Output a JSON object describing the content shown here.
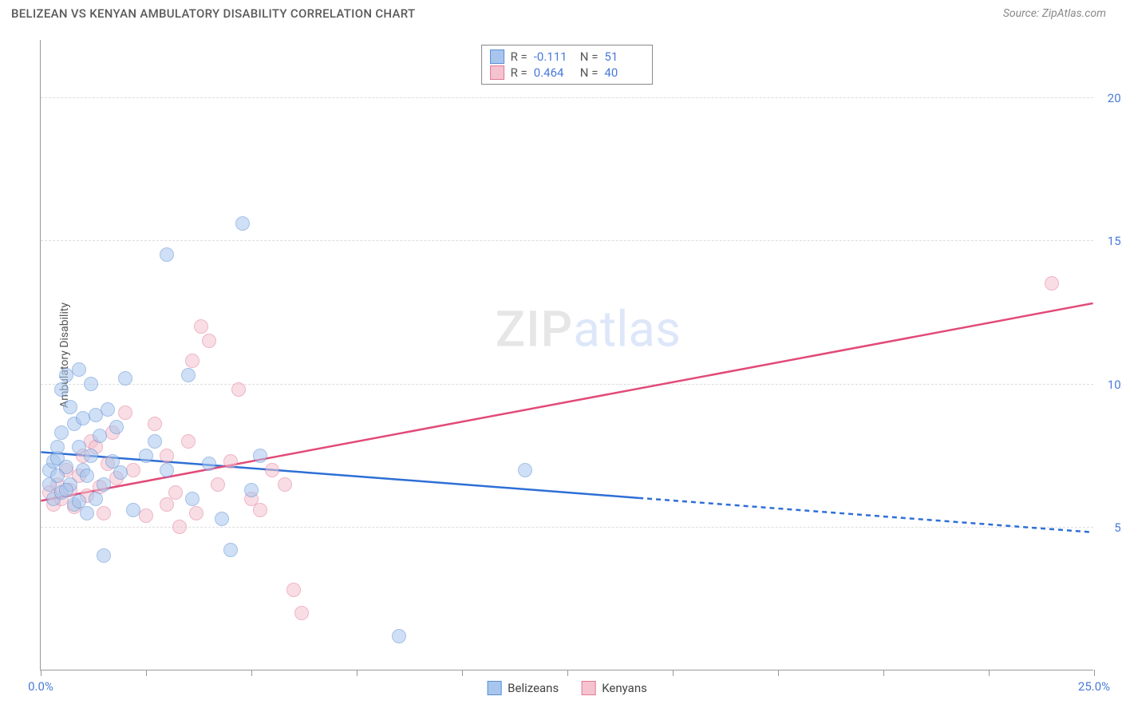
{
  "header": {
    "title": "BELIZEAN VS KENYAN AMBULATORY DISABILITY CORRELATION CHART",
    "source_prefix": "Source: ",
    "source_name": "ZipAtlas.com"
  },
  "chart": {
    "type": "scatter",
    "y_axis_title": "Ambulatory Disability",
    "background_color": "#ffffff",
    "grid_color": "#dddddd",
    "axis_color": "#999999",
    "tick_label_color": "#4a7bd8",
    "xlim": [
      0,
      25
    ],
    "ylim": [
      0,
      22
    ],
    "x_ticks": [
      0,
      2.5,
      5,
      7.5,
      10,
      12.5,
      15,
      17.5,
      20,
      22.5,
      25
    ],
    "x_tick_labels": {
      "0": "0.0%",
      "25": "25.0%"
    },
    "y_ticks": [
      5,
      10,
      15,
      20
    ],
    "y_tick_labels": {
      "5": "5.0%",
      "10": "10.0%",
      "15": "15.0%",
      "20": "20.0%"
    },
    "point_radius": 9,
    "point_opacity": 0.55,
    "watermark": {
      "zip": "ZIP",
      "atlas": "atlas"
    }
  },
  "series": {
    "belizeans": {
      "label": "Belizeans",
      "fill_color": "#a8c6ed",
      "stroke_color": "#5b8fd6",
      "line_color": "#2e6fd6",
      "R": "-0.111",
      "N": "51",
      "trend": {
        "x1": 0,
        "y1": 7.6,
        "x2_solid": 14.2,
        "y2_solid": 6.0,
        "x2": 25,
        "y2": 4.8
      },
      "points": [
        [
          0.2,
          6.5
        ],
        [
          0.2,
          7.0
        ],
        [
          0.3,
          6.0
        ],
        [
          0.3,
          7.3
        ],
        [
          0.4,
          6.8
        ],
        [
          0.4,
          7.4
        ],
        [
          0.5,
          9.8
        ],
        [
          0.5,
          8.3
        ],
        [
          0.5,
          6.2
        ],
        [
          0.6,
          10.3
        ],
        [
          0.6,
          7.1
        ],
        [
          0.7,
          9.2
        ],
        [
          0.7,
          6.5
        ],
        [
          0.8,
          8.6
        ],
        [
          0.8,
          5.8
        ],
        [
          0.9,
          7.8
        ],
        [
          0.9,
          10.5
        ],
        [
          1.0,
          8.8
        ],
        [
          1.0,
          7.0
        ],
        [
          1.1,
          5.5
        ],
        [
          1.1,
          6.8
        ],
        [
          1.2,
          10.0
        ],
        [
          1.2,
          7.5
        ],
        [
          1.3,
          6.0
        ],
        [
          1.4,
          8.2
        ],
        [
          1.5,
          4.0
        ],
        [
          1.5,
          6.5
        ],
        [
          1.6,
          9.1
        ],
        [
          1.7,
          7.3
        ],
        [
          1.8,
          8.5
        ],
        [
          1.9,
          6.9
        ],
        [
          2.0,
          10.2
        ],
        [
          2.2,
          5.6
        ],
        [
          2.5,
          7.5
        ],
        [
          2.7,
          8.0
        ],
        [
          3.0,
          14.5
        ],
        [
          3.0,
          7.0
        ],
        [
          3.5,
          10.3
        ],
        [
          3.6,
          6.0
        ],
        [
          4.0,
          7.2
        ],
        [
          4.3,
          5.3
        ],
        [
          4.5,
          4.2
        ],
        [
          4.8,
          15.6
        ],
        [
          5.0,
          6.3
        ],
        [
          5.2,
          7.5
        ],
        [
          8.5,
          1.2
        ],
        [
          11.5,
          7.0
        ],
        [
          0.4,
          7.8
        ],
        [
          0.6,
          6.3
        ],
        [
          0.9,
          5.9
        ],
        [
          1.3,
          8.9
        ]
      ]
    },
    "kenyans": {
      "label": "Kenyans",
      "fill_color": "#f4c3cf",
      "stroke_color": "#e27a98",
      "line_color": "#e24a78",
      "R": "0.464",
      "N": "40",
      "trend": {
        "x1": 0,
        "y1": 5.9,
        "x2_solid": 25,
        "y2_solid": 12.8,
        "x2": 25,
        "y2": 12.8
      },
      "points": [
        [
          0.2,
          6.2
        ],
        [
          0.3,
          5.8
        ],
        [
          0.4,
          6.5
        ],
        [
          0.5,
          6.0
        ],
        [
          0.6,
          7.0
        ],
        [
          0.7,
          6.3
        ],
        [
          0.8,
          5.7
        ],
        [
          0.9,
          6.8
        ],
        [
          1.0,
          7.5
        ],
        [
          1.1,
          6.1
        ],
        [
          1.2,
          8.0
        ],
        [
          1.3,
          7.8
        ],
        [
          1.4,
          6.4
        ],
        [
          1.5,
          5.5
        ],
        [
          1.6,
          7.2
        ],
        [
          1.7,
          8.3
        ],
        [
          1.8,
          6.7
        ],
        [
          2.0,
          9.0
        ],
        [
          2.2,
          7.0
        ],
        [
          2.5,
          5.4
        ],
        [
          2.7,
          8.6
        ],
        [
          3.0,
          5.8
        ],
        [
          3.0,
          7.5
        ],
        [
          3.2,
          6.2
        ],
        [
          3.3,
          5.0
        ],
        [
          3.5,
          8.0
        ],
        [
          3.6,
          10.8
        ],
        [
          3.7,
          5.5
        ],
        [
          3.8,
          12.0
        ],
        [
          4.0,
          11.5
        ],
        [
          4.2,
          6.5
        ],
        [
          4.5,
          7.3
        ],
        [
          4.7,
          9.8
        ],
        [
          5.0,
          6.0
        ],
        [
          5.2,
          5.6
        ],
        [
          5.5,
          7.0
        ],
        [
          5.8,
          6.5
        ],
        [
          6.0,
          2.8
        ],
        [
          6.2,
          2.0
        ],
        [
          24.0,
          13.5
        ]
      ]
    }
  }
}
